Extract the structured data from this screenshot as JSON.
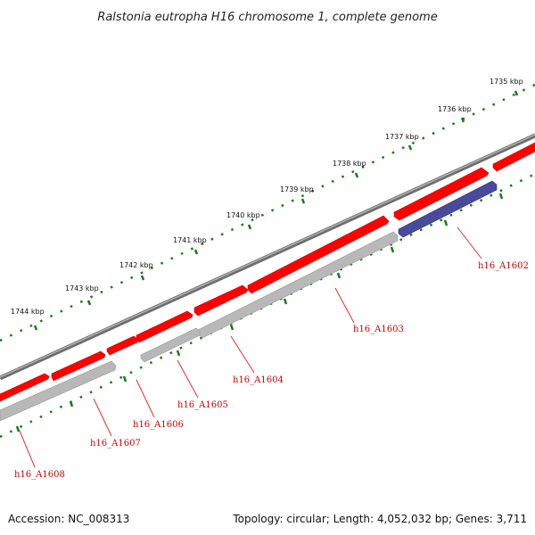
{
  "title": "Ralstonia eutropha H16 chromosome 1, complete genome",
  "footer": {
    "accession": "Accession: NC_008313",
    "summary": "Topology: circular; Length: 4,052,032 bp; Genes: 3,711"
  },
  "colors": {
    "backbone": "#7a7a7a",
    "forward_gene": "#ff0000",
    "reverse_gene": "#b8b8b8",
    "highlight_gene": "#4a4a9a",
    "scale": "#1a7a1a",
    "label": "#cc0000"
  },
  "scale_ticks": [
    {
      "label": "1735 kbp"
    },
    {
      "label": "1736 kbp"
    },
    {
      "label": "1737 kbp"
    },
    {
      "label": "1738 kbp"
    },
    {
      "label": "1739 kbp"
    },
    {
      "label": "1740 kbp"
    },
    {
      "label": "1741 kbp"
    },
    {
      "label": "1742 kbp"
    },
    {
      "label": "1743 kbp"
    },
    {
      "label": "1744 kbp"
    }
  ],
  "gene_labels": [
    {
      "label": "h16_A1602"
    },
    {
      "label": "h16_A1603"
    },
    {
      "label": "h16_A1604"
    },
    {
      "label": "h16_A1605"
    },
    {
      "label": "h16_A1606"
    },
    {
      "label": "h16_A1607"
    },
    {
      "label": "h16_A1608"
    }
  ]
}
